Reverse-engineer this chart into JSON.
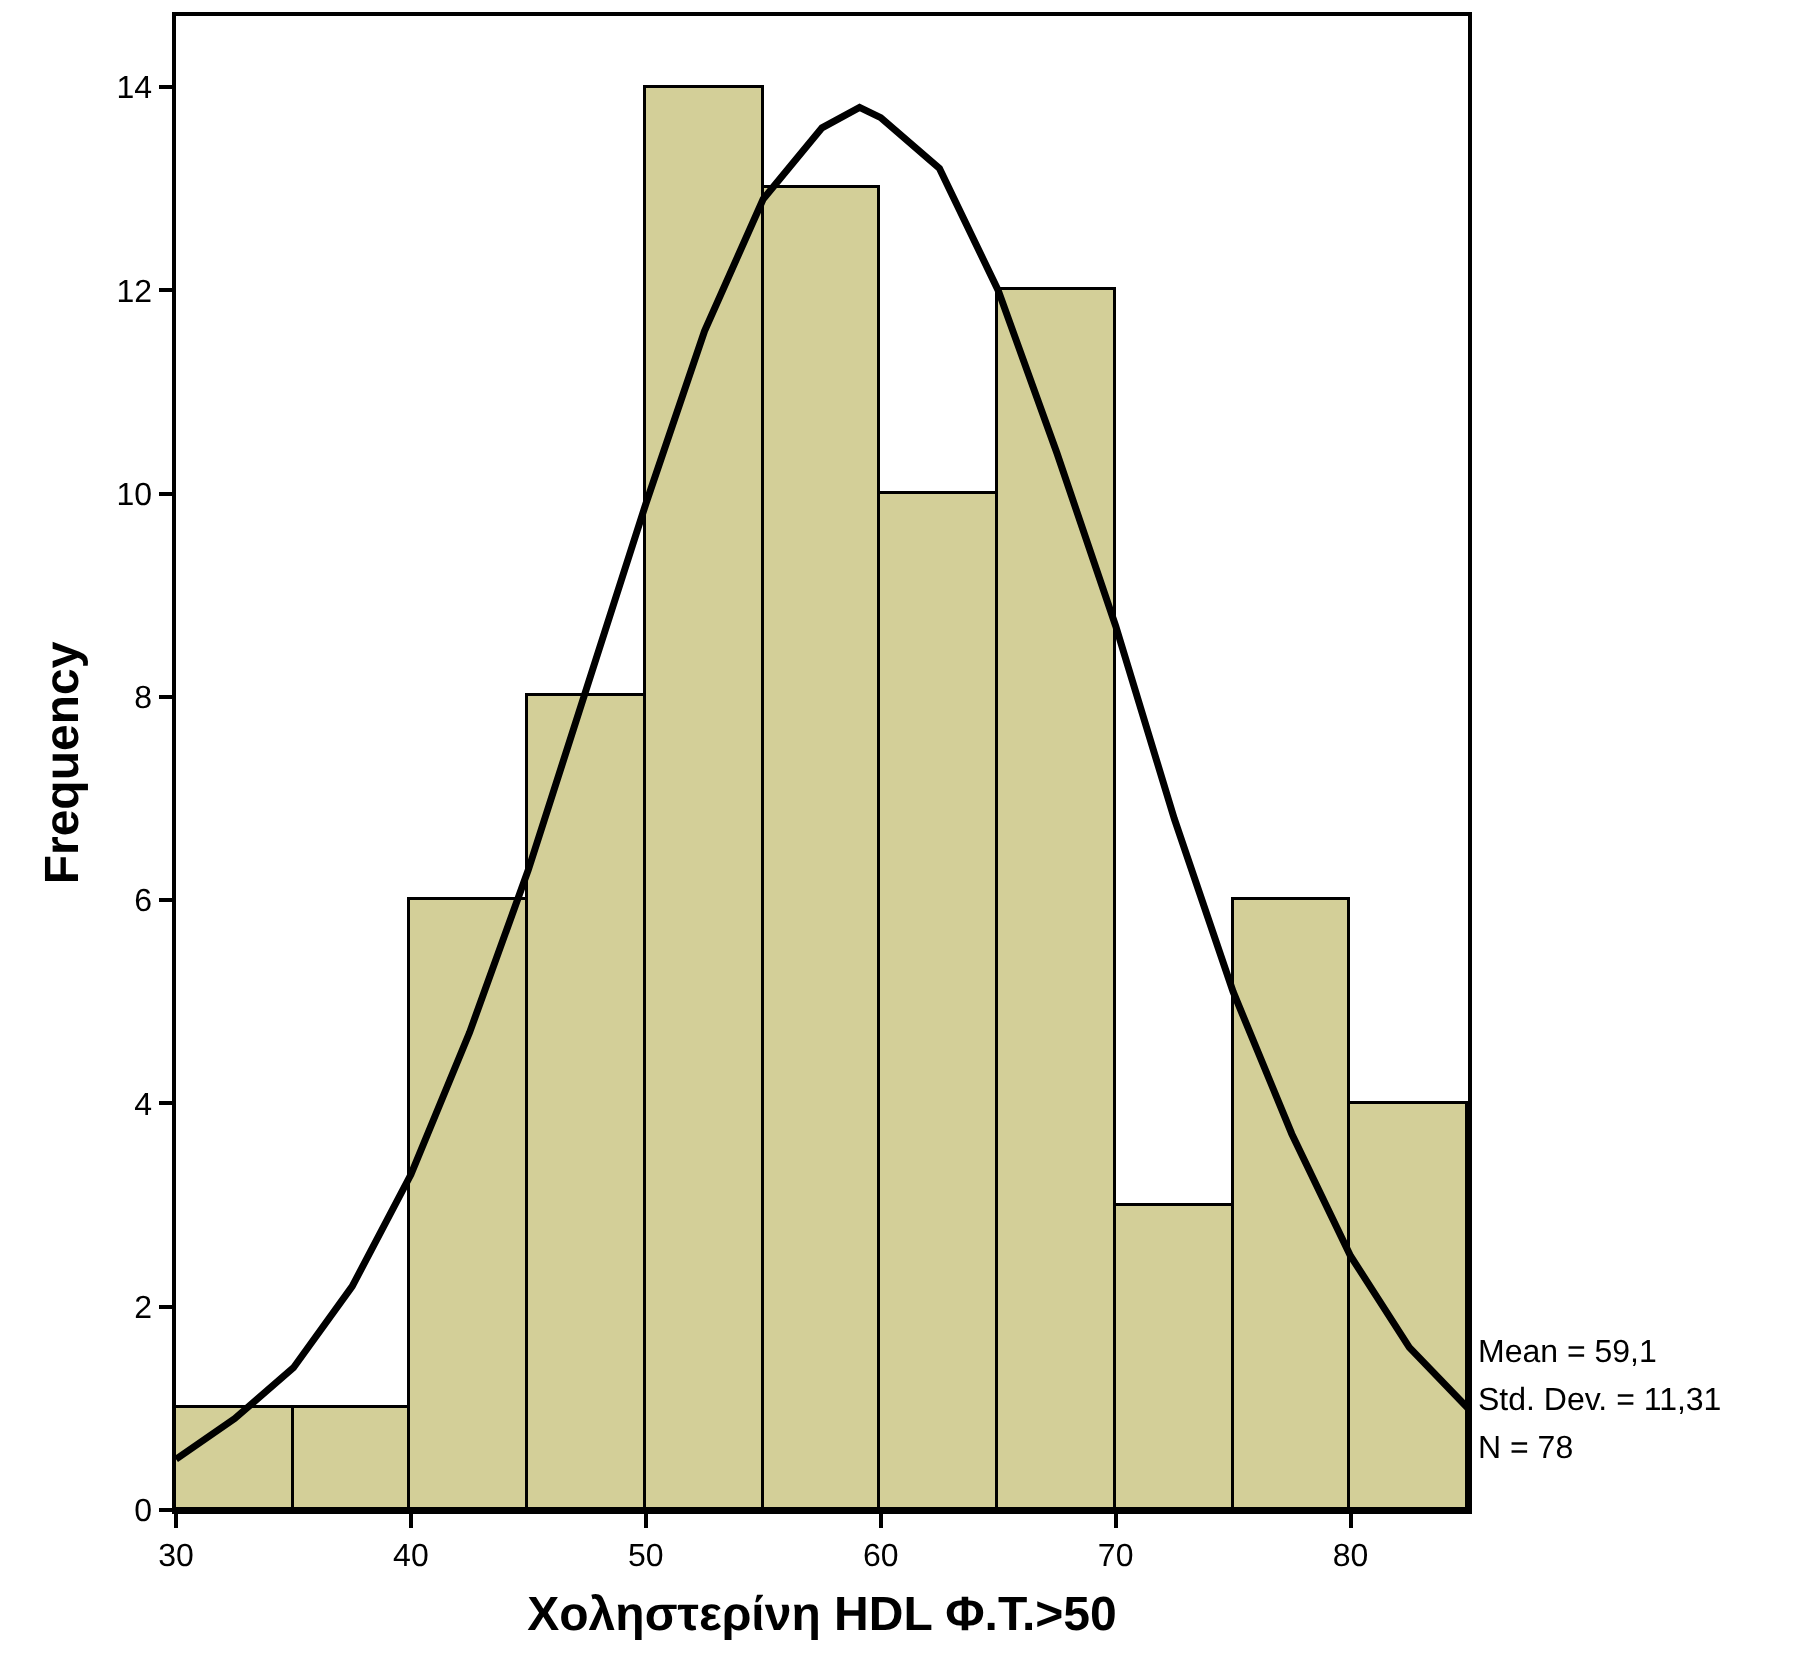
{
  "chart_data": {
    "type": "histogram",
    "xlabel": "Χοληστερίνη HDL Φ.Τ.>50",
    "ylabel": "Frequency",
    "bins": [
      30,
      35,
      40,
      45,
      50,
      55,
      60,
      65,
      70,
      75,
      80,
      85
    ],
    "values": [
      1,
      1,
      6,
      8,
      14,
      13,
      10,
      12,
      3,
      6,
      4
    ],
    "color": "#d3cf98",
    "series": [
      {
        "type": "line",
        "color": "#000000",
        "x": [
          30,
          32.5,
          35,
          37.5,
          40,
          42.5,
          45,
          47.5,
          50,
          52.5,
          55,
          57.5,
          59.1,
          60,
          62.5,
          65,
          67.5,
          70,
          72.5,
          75,
          77.5,
          80,
          82.5,
          85
        ],
        "values": [
          0.5,
          0.9,
          1.4,
          2.2,
          3.3,
          4.7,
          6.3,
          8.1,
          9.9,
          11.6,
          12.9,
          13.6,
          13.8,
          13.7,
          13.2,
          12.0,
          10.4,
          8.7,
          6.8,
          5.1,
          3.7,
          2.5,
          1.6,
          1.0
        ]
      }
    ],
    "xlim": [
      30,
      85
    ],
    "xticks": [
      30,
      40,
      50,
      60,
      70,
      80
    ],
    "ylim": [
      0,
      14.7
    ],
    "yticks": [
      0,
      2,
      4,
      6,
      8,
      10,
      12,
      14
    ],
    "grid": false,
    "annotations": [
      "Mean = 59,1",
      "Std. Dev. = 11,31",
      "N = 78"
    ]
  }
}
